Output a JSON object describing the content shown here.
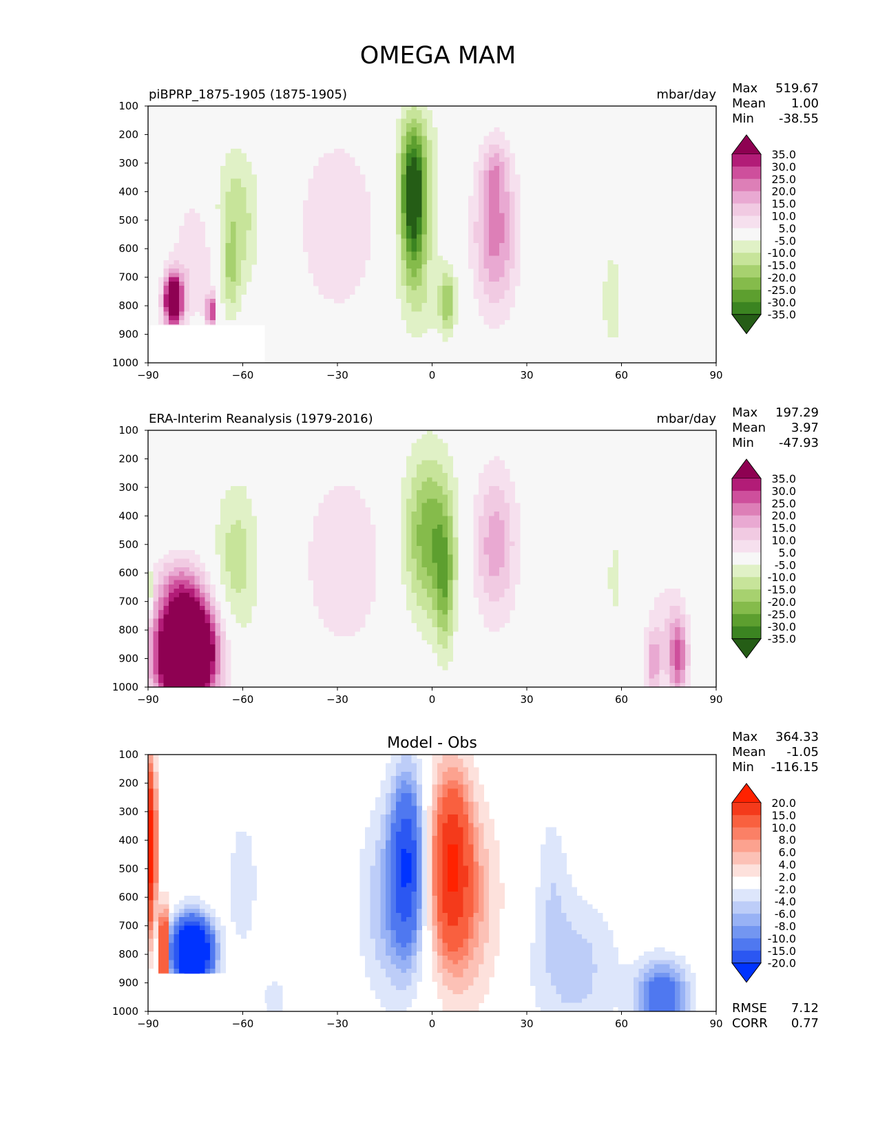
{
  "title": "OMEGA MAM",
  "colors": {
    "diverging_pg": [
      "#255d16",
      "#3b8421",
      "#5d9f2f",
      "#85bb4b",
      "#a7d16f",
      "#c7e49a",
      "#e0f1c6",
      "#f7f7f7",
      "#f6e0ee",
      "#f1cae2",
      "#e9a9d2",
      "#dd7fb7",
      "#ce4f9c",
      "#b21c77",
      "#8e0152"
    ],
    "diverging_br": [
      "#0033ff",
      "#2b57f2",
      "#4f78f0",
      "#7396f1",
      "#98b2f5",
      "#bdcdf8",
      "#dde6fb",
      "#ffffff",
      "#fde1dc",
      "#fcc1b6",
      "#fca28f",
      "#fb8066",
      "#f9603f",
      "#f43a1b",
      "#ff2200"
    ],
    "background": "#f7f7f7"
  },
  "chart_data": [
    {
      "type": "heatmap",
      "name": "model",
      "title_left": "piBPRP_1875-1905 (1875-1905)",
      "title_right": "mbar/day",
      "xlabel": "",
      "ylabel": "",
      "xlim": [
        -90,
        90
      ],
      "ylim": [
        1000,
        100
      ],
      "x_ticks": [
        "−90",
        "−60",
        "−30",
        "0",
        "30",
        "60",
        "90"
      ],
      "y_ticks": [
        "100",
        "200",
        "300",
        "400",
        "500",
        "600",
        "700",
        "800",
        "900",
        "1000"
      ],
      "stats": [
        {
          "label": "Max",
          "value": "519.67"
        },
        {
          "label": "Mean",
          "value": "1.00"
        },
        {
          "label": "Min",
          "value": "-38.55"
        }
      ],
      "colorbar": {
        "labels": [
          "35.0",
          "30.0",
          "25.0",
          "20.0",
          "15.0",
          "10.0",
          "5.0",
          "-5.0",
          "-10.0",
          "-15.0",
          "-20.0",
          "-25.0",
          "-30.0",
          "-35.0"
        ]
      },
      "features": [
        {
          "lat": -6,
          "p": 430,
          "wlat": 4,
          "wp": 250,
          "amp": -40
        },
        {
          "lat": 5,
          "p": 790,
          "wlat": 2.5,
          "wp": 100,
          "amp": -18
        },
        {
          "lat": -4,
          "p": 300,
          "wlat": 8,
          "wp": 230,
          "amp": -8
        },
        {
          "lat": -3,
          "p": 750,
          "wlat": 9,
          "wp": 200,
          "amp": -8
        },
        {
          "lat": 20,
          "p": 550,
          "wlat": 7,
          "wp": 270,
          "amp": 22
        },
        {
          "lat": 20,
          "p": 330,
          "wlat": 4,
          "wp": 110,
          "amp": 10
        },
        {
          "lat": -30,
          "p": 520,
          "wlat": 13,
          "wp": 320,
          "amp": 10
        },
        {
          "lat": -62,
          "p": 500,
          "wlat": 7,
          "wp": 250,
          "amp": -14
        },
        {
          "lat": -64,
          "p": 700,
          "wlat": 3,
          "wp": 150,
          "amp": -10
        },
        {
          "lat": 57,
          "p": 780,
          "wlat": 6,
          "wp": 320,
          "amp": -6
        },
        {
          "lat": -82,
          "p": 780,
          "wlat": 3,
          "wp": 90,
          "amp": 55
        },
        {
          "lat": -75,
          "p": 640,
          "wlat": 7,
          "wp": 220,
          "amp": 10
        },
        {
          "lat": -70,
          "p": 820,
          "wlat": 1.5,
          "wp": 60,
          "amp": 30
        }
      ],
      "mask": [
        {
          "lat1": -90,
          "lat2": -53,
          "p1": 868,
          "p2": 1000
        }
      ]
    },
    {
      "type": "heatmap",
      "name": "obs",
      "title_left": "ERA-Interim Reanalysis (1979-2016)",
      "title_right": "mbar/day",
      "xlabel": "",
      "ylabel": "",
      "xlim": [
        -90,
        90
      ],
      "ylim": [
        1000,
        100
      ],
      "x_ticks": [
        "−90",
        "−60",
        "−30",
        "0",
        "30",
        "60",
        "90"
      ],
      "y_ticks": [
        "100",
        "200",
        "300",
        "400",
        "500",
        "600",
        "700",
        "800",
        "900",
        "1000"
      ],
      "stats": [
        {
          "label": "Max",
          "value": "197.29"
        },
        {
          "label": "Mean",
          "value": "3.97"
        },
        {
          "label": "Min",
          "value": "-47.93"
        }
      ],
      "colorbar": {
        "labels": [
          "35.0",
          "30.0",
          "25.0",
          "20.0",
          "15.0",
          "10.0",
          "5.0",
          "-5.0",
          "-10.0",
          "-15.0",
          "-20.0",
          "-25.0",
          "-30.0",
          "-35.0"
        ]
      },
      "features": [
        {
          "lat": -1,
          "p": 470,
          "wlat": 8,
          "wp": 290,
          "amp": -24
        },
        {
          "lat": 4,
          "p": 650,
          "wlat": 3,
          "wp": 240,
          "amp": -16
        },
        {
          "lat": 20,
          "p": 500,
          "wlat": 7,
          "wp": 270,
          "amp": 18
        },
        {
          "lat": -28,
          "p": 560,
          "wlat": 13,
          "wp": 320,
          "amp": 10
        },
        {
          "lat": -62,
          "p": 560,
          "wlat": 7,
          "wp": 280,
          "amp": -13
        },
        {
          "lat": 58,
          "p": 620,
          "wlat": 4,
          "wp": 220,
          "amp": -6
        },
        {
          "lat": -78,
          "p": 880,
          "wlat": 9,
          "wp": 180,
          "amp": 90
        },
        {
          "lat": -80,
          "p": 640,
          "wlat": 8,
          "wp": 110,
          "amp": 14
        },
        {
          "lat": 78,
          "p": 900,
          "wlat": 3,
          "wp": 150,
          "amp": 24
        },
        {
          "lat": 70,
          "p": 920,
          "wlat": 2.5,
          "wp": 110,
          "amp": 16
        },
        {
          "lat": 74,
          "p": 800,
          "wlat": 6,
          "wp": 200,
          "amp": 8
        },
        {
          "lat": -90,
          "p": 650,
          "wlat": 1.2,
          "wp": 80,
          "amp": -25
        }
      ],
      "mask": []
    },
    {
      "type": "heatmap",
      "name": "diff",
      "title_center": "Model - Obs",
      "xlabel": "",
      "ylabel": "",
      "xlim": [
        -90,
        90
      ],
      "ylim": [
        1000,
        100
      ],
      "x_ticks": [
        "−90",
        "−60",
        "−30",
        "0",
        "30",
        "60",
        "90"
      ],
      "y_ticks": [
        "100",
        "200",
        "300",
        "400",
        "500",
        "600",
        "700",
        "800",
        "900",
        "1000"
      ],
      "stats": [
        {
          "label": "Max",
          "value": "364.33"
        },
        {
          "label": "Mean",
          "value": "-1.05"
        },
        {
          "label": "Min",
          "value": "-116.15"
        }
      ],
      "colorbar": {
        "labels": [
          "20.0",
          "15.0",
          "10.0",
          "8.0",
          "6.0",
          "4.0",
          "2.0",
          "-2.0",
          "-4.0",
          "-6.0",
          "-8.0",
          "-10.0",
          "-15.0",
          "-20.0"
        ]
      },
      "metrics": [
        {
          "label": "RMSE",
          "value": "7.12"
        },
        {
          "label": "CORR",
          "value": "0.77"
        }
      ],
      "features": [
        {
          "lat": -8,
          "p": 480,
          "wlat": 5,
          "wp": 300,
          "amp": -18
        },
        {
          "lat": -14,
          "p": 620,
          "wlat": 9,
          "wp": 340,
          "amp": -6
        },
        {
          "lat": 6,
          "p": 480,
          "wlat": 6,
          "wp": 310,
          "amp": 18
        },
        {
          "lat": 12,
          "p": 620,
          "wlat": 10,
          "wp": 350,
          "amp": 6
        },
        {
          "lat": -76,
          "p": 790,
          "wlat": 6,
          "wp": 110,
          "amp": -40
        },
        {
          "lat": -60,
          "p": 550,
          "wlat": 5,
          "wp": 250,
          "amp": -3.5
        },
        {
          "lat": 73,
          "p": 950,
          "wlat": 8,
          "wp": 120,
          "amp": -14
        },
        {
          "lat": 45,
          "p": 850,
          "wlat": 14,
          "wp": 260,
          "amp": -5
        },
        {
          "lat": 38,
          "p": 520,
          "wlat": 5,
          "wp": 250,
          "amp": -3
        },
        {
          "lat": -89,
          "p": 420,
          "wlat": 1.5,
          "wp": 280,
          "amp": 25
        },
        {
          "lat": -85,
          "p": 780,
          "wlat": 1.2,
          "wp": 130,
          "amp": 30
        },
        {
          "lat": -50,
          "p": 950,
          "wlat": 4,
          "wp": 60,
          "amp": -4
        }
      ],
      "mask": [
        {
          "lat1": -90,
          "lat2": -53,
          "p1": 868,
          "p2": 1000
        }
      ]
    }
  ]
}
